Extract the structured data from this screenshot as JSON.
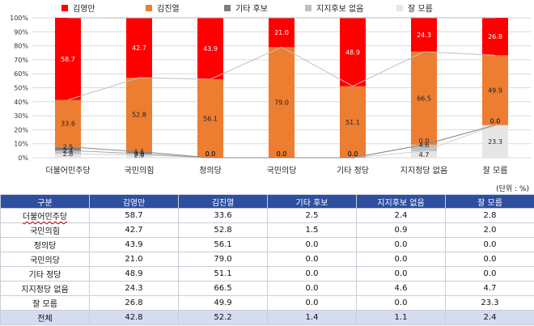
{
  "legend": [
    {
      "label": "김영만",
      "color": "#ff0000"
    },
    {
      "label": "김진열",
      "color": "#ed7d31"
    },
    {
      "label": "기타 후보",
      "color": "#7f7f7f"
    },
    {
      "label": "지지후보 없음",
      "color": "#bfbfbf"
    },
    {
      "label": "잘 모름",
      "color": "#e7e6e6"
    }
  ],
  "unit": "(단위 : %)",
  "chart_data": {
    "type": "bar",
    "stacked": true,
    "categories": [
      "더불어민주당",
      "국민의힘",
      "정의당",
      "국민의당",
      "기타 정당",
      "지지정당 없음",
      "잘 모름"
    ],
    "ylim": [
      0,
      100
    ],
    "yticks": [
      "0%",
      "10%",
      "20%",
      "30%",
      "40%",
      "50%",
      "60%",
      "70%",
      "80%",
      "90%",
      "100%"
    ],
    "grid": true,
    "legend_position": "top",
    "series": [
      {
        "name": "잘 모름",
        "color": "#e7e6e6",
        "values": [
          2.8,
          2.0,
          0.0,
          0.0,
          0.0,
          4.7,
          23.3
        ]
      },
      {
        "name": "지지후보 없음",
        "color": "#bfbfbf",
        "values": [
          2.4,
          0.9,
          0.0,
          0.0,
          0.0,
          4.6,
          0.0
        ]
      },
      {
        "name": "기타 후보",
        "color": "#7f7f7f",
        "values": [
          2.5,
          1.5,
          0.0,
          0.0,
          0.0,
          0.0,
          0.0
        ]
      },
      {
        "name": "김진열",
        "color": "#ed7d31",
        "values": [
          33.6,
          52.8,
          56.1,
          79.0,
          51.1,
          66.5,
          49.9
        ]
      },
      {
        "name": "김영만",
        "color": "#ff0000",
        "values": [
          58.7,
          42.7,
          43.9,
          21.0,
          48.9,
          24.3,
          26.8
        ]
      }
    ]
  },
  "table": {
    "headers": [
      "구분",
      "김영만",
      "김진열",
      "기타 후보",
      "지지후보 없음",
      "잘 모름"
    ],
    "rows": [
      [
        "더불어민주당",
        "58.7",
        "33.6",
        "2.5",
        "2.4",
        "2.8"
      ],
      [
        "국민의힘",
        "42.7",
        "52.8",
        "1.5",
        "0.9",
        "2.0"
      ],
      [
        "정의당",
        "43.9",
        "56.1",
        "0.0",
        "0.0",
        "0.0"
      ],
      [
        "국민의당",
        "21.0",
        "79.0",
        "0.0",
        "0.0",
        "0.0"
      ],
      [
        "기타 정당",
        "48.9",
        "51.1",
        "0.0",
        "0.0",
        "0.0"
      ],
      [
        "지지정당 없음",
        "24.3",
        "66.5",
        "0.0",
        "4.6",
        "4.7"
      ],
      [
        "잘 모름",
        "26.8",
        "49.9",
        "0.0",
        "0.0",
        "23.3"
      ]
    ],
    "total": [
      "전체",
      "42.8",
      "52.2",
      "1.4",
      "1.1",
      "2.4"
    ]
  }
}
